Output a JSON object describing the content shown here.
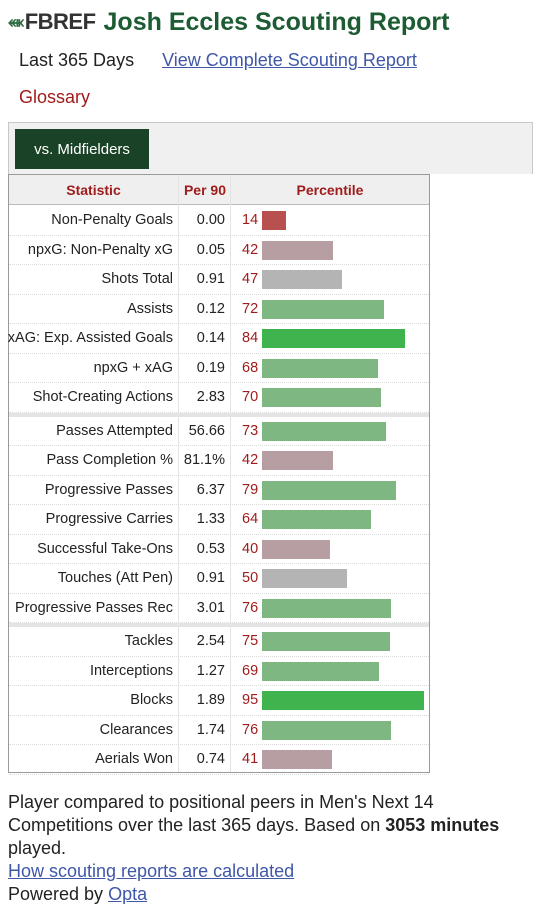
{
  "header": {
    "logo_mark": "⬽",
    "logo_text": "FBREF",
    "title": "Josh Eccles Scouting Report"
  },
  "subheader": {
    "period": "Last 365 Days",
    "full_report_link": "View Complete Scouting Report",
    "glossary": "Glossary"
  },
  "filter": {
    "active_label": "vs. Midfielders"
  },
  "table": {
    "headers": {
      "statistic": "Statistic",
      "per90": "Per 90",
      "percentile": "Percentile"
    },
    "colors": {
      "low": "#b85050",
      "lowmid": "#b79ea2",
      "mid": "#b4b4b4",
      "high": "#7fb783",
      "top": "#3fb44e"
    },
    "groups": [
      [
        {
          "stat": "Non-Penalty Goals",
          "per90": "0.00",
          "pct": 14
        },
        {
          "stat": "npxG: Non-Penalty xG",
          "per90": "0.05",
          "pct": 42
        },
        {
          "stat": "Shots Total",
          "per90": "0.91",
          "pct": 47
        },
        {
          "stat": "Assists",
          "per90": "0.12",
          "pct": 72
        },
        {
          "stat": "xAG: Exp. Assisted Goals",
          "per90": "0.14",
          "pct": 84
        },
        {
          "stat": "npxG + xAG",
          "per90": "0.19",
          "pct": 68
        },
        {
          "stat": "Shot-Creating Actions",
          "per90": "2.83",
          "pct": 70
        }
      ],
      [
        {
          "stat": "Passes Attempted",
          "per90": "56.66",
          "pct": 73
        },
        {
          "stat": "Pass Completion %",
          "per90": "81.1%",
          "pct": 42
        },
        {
          "stat": "Progressive Passes",
          "per90": "6.37",
          "pct": 79
        },
        {
          "stat": "Progressive Carries",
          "per90": "1.33",
          "pct": 64
        },
        {
          "stat": "Successful Take-Ons",
          "per90": "0.53",
          "pct": 40
        },
        {
          "stat": "Touches (Att Pen)",
          "per90": "0.91",
          "pct": 50
        },
        {
          "stat": "Progressive Passes Rec",
          "per90": "3.01",
          "pct": 76
        }
      ],
      [
        {
          "stat": "Tackles",
          "per90": "2.54",
          "pct": 75
        },
        {
          "stat": "Interceptions",
          "per90": "1.27",
          "pct": 69
        },
        {
          "stat": "Blocks",
          "per90": "1.89",
          "pct": 95
        },
        {
          "stat": "Clearances",
          "per90": "1.74",
          "pct": 76
        },
        {
          "stat": "Aerials Won",
          "per90": "0.74",
          "pct": 41
        }
      ]
    ]
  },
  "footer": {
    "text_before": "Player compared to positional peers in Men's Next 14 Competitions over the last 365 days. Based on ",
    "minutes": "3053 minutes",
    "text_after": " played.",
    "calc_link": "How scouting reports are calculated",
    "powered_by": "Powered by ",
    "opta_link": "Opta"
  }
}
